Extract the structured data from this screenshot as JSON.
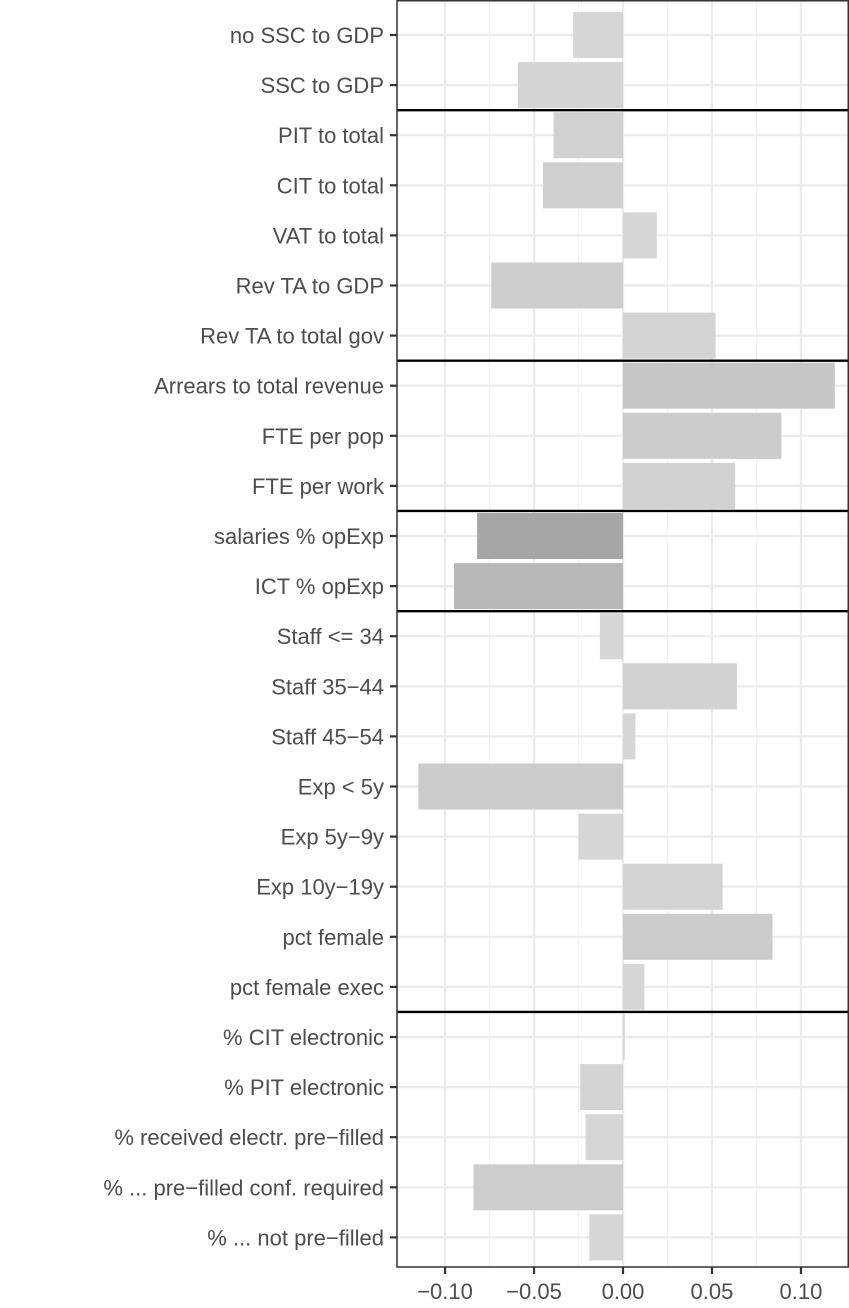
{
  "chart_data": {
    "type": "bar",
    "orientation": "horizontal",
    "categories": [
      "no SSC to GDP",
      "SSC to GDP",
      "PIT to total",
      "CIT to total",
      "VAT to total",
      "Rev TA to GDP",
      "Rev TA to total gov",
      "Arrears to total revenue",
      "FTE per pop",
      "FTE per work",
      "salaries % opExp",
      "ICT % opExp",
      "Staff <= 34",
      "Staff 35−44",
      "Staff 45−54",
      "Exp < 5y",
      "Exp 5y−9y",
      "Exp 10y−19y",
      "pct female",
      "pct female exec",
      "% CIT electronic",
      "% PIT electronic",
      "% received electr. pre−filled",
      "% ... pre−filled conf. required",
      "% ... not pre−filled"
    ],
    "values": [
      -0.028,
      -0.059,
      -0.039,
      -0.045,
      0.019,
      -0.074,
      0.052,
      0.119,
      0.089,
      0.063,
      -0.082,
      -0.095,
      -0.013,
      0.064,
      0.007,
      -0.115,
      -0.025,
      0.056,
      0.084,
      0.012,
      0.001,
      -0.024,
      -0.021,
      -0.084,
      -0.019
    ],
    "bar_colors": [
      "#d6d6d6",
      "#d4d4d4",
      "#d1d1d1",
      "#cfcfcf",
      "#d6d6d6",
      "#cdcdcd",
      "#d3d3d3",
      "#c6c6c6",
      "#cbcbcb",
      "#d1d1d1",
      "#a6a6a6",
      "#b8b8b8",
      "#d6d6d6",
      "#d1d1d1",
      "#d6d6d6",
      "#cbcbcb",
      "#d6d6d6",
      "#d3d3d3",
      "#cbcbcb",
      "#d6d6d6",
      "#d6d6d6",
      "#d4d4d4",
      "#d6d6d6",
      "#cdcdcd",
      "#d6d6d6"
    ],
    "group_separators_after": [
      2,
      7,
      10,
      12,
      20
    ],
    "x_ticks": [
      -0.1,
      -0.05,
      0.0,
      0.05,
      0.1
    ],
    "x_tick_labels": [
      "−0.10",
      "−0.05",
      "0.00",
      "0.05",
      "0.10"
    ],
    "xlim": [
      -0.127,
      0.127
    ],
    "title": "",
    "xlabel": "",
    "ylabel": "",
    "grid": true,
    "legend": "none"
  }
}
